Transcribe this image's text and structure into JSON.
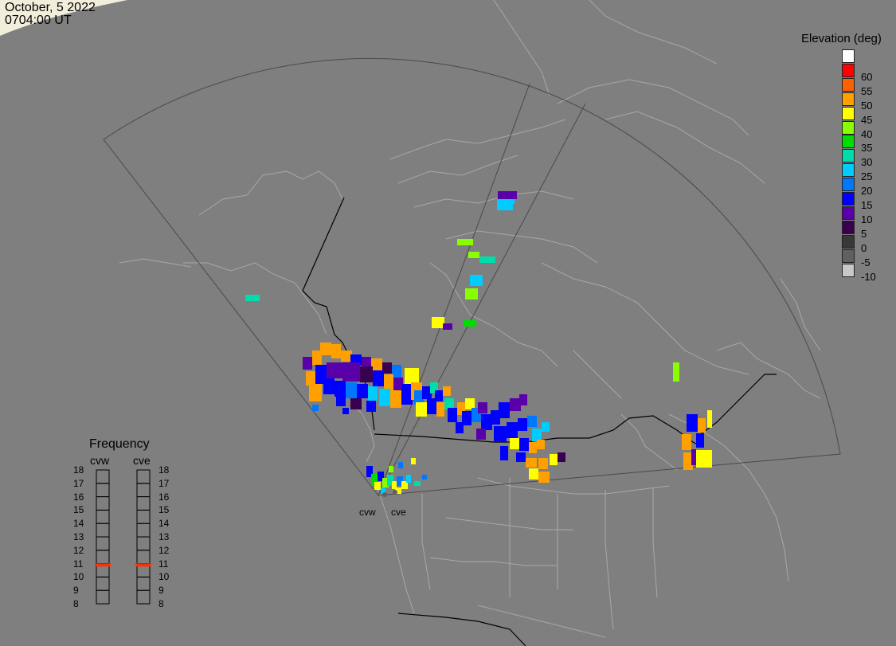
{
  "header": {
    "date": "October, 5 2022",
    "time": "0704:00 UT"
  },
  "elevation_legend": {
    "title": "Elevation (deg)",
    "entries": [
      {
        "label": "",
        "color": "#ffffff"
      },
      {
        "label": "60",
        "color": "#ff0000"
      },
      {
        "label": "55",
        "color": "#ff6000"
      },
      {
        "label": "50",
        "color": "#ffa000"
      },
      {
        "label": "45",
        "color": "#ffff00"
      },
      {
        "label": "40",
        "color": "#88ff00"
      },
      {
        "label": "35",
        "color": "#00dd00"
      },
      {
        "label": "30",
        "color": "#00ddaa"
      },
      {
        "label": "25",
        "color": "#00ccff"
      },
      {
        "label": "20",
        "color": "#0077ff"
      },
      {
        "label": "15",
        "color": "#0000ff"
      },
      {
        "label": "10",
        "color": "#5a00a8"
      },
      {
        "label": "5",
        "color": "#3a0050"
      },
      {
        "label": "0",
        "color": "#383838"
      },
      {
        "label": "-5",
        "color": "#606060"
      },
      {
        "label": "-10",
        "color": "#c8c8c8"
      }
    ]
  },
  "frequency_legend": {
    "title": "Frequency",
    "radars": [
      "cvw",
      "cve"
    ],
    "scale": [
      "18",
      "17",
      "16",
      "15",
      "14",
      "13",
      "12",
      "11",
      "10",
      "9",
      "8"
    ],
    "marker_mhz": {
      "cvw": 10.9,
      "cve": 10.9
    },
    "marker_color": "#ff3000"
  },
  "sites": [
    "cvw",
    "cve"
  ]
}
